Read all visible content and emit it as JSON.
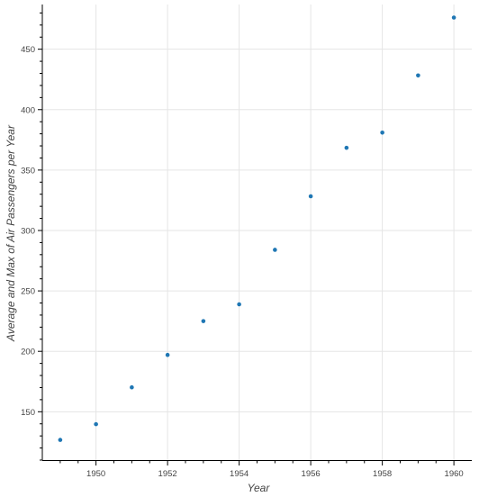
{
  "chart_data": {
    "type": "scatter",
    "title": "",
    "xlabel": "Year",
    "ylabel": "Average and Max of Air Passengers per Year",
    "xlim": [
      1948.5,
      1960.5
    ],
    "ylim": [
      110,
      487
    ],
    "x_ticks": [
      1950,
      1952,
      1954,
      1956,
      1958,
      1960
    ],
    "y_ticks": [
      150,
      200,
      250,
      300,
      350,
      400,
      450
    ],
    "grid": true,
    "legend": "none",
    "point_color": "#1f77b4",
    "series": [
      {
        "x": [
          1949,
          1950,
          1951,
          1952,
          1953,
          1954,
          1955,
          1956,
          1957,
          1958,
          1959,
          1960
        ],
        "y": [
          126.7,
          139.7,
          170.2,
          197.0,
          225.0,
          238.9,
          284.0,
          328.3,
          368.4,
          381.0,
          428.3,
          476.2
        ]
      }
    ]
  }
}
